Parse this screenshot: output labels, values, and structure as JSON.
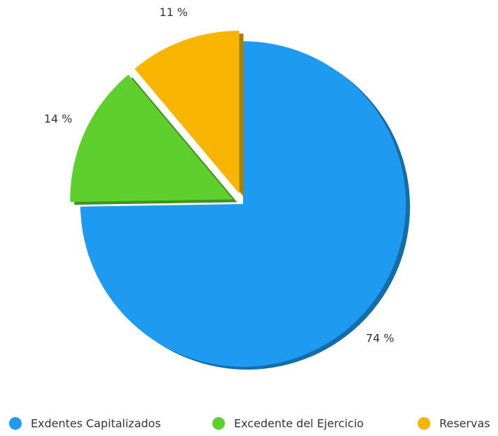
{
  "chart_data": {
    "type": "pie",
    "categories": [
      "Exdentes Capitalizados",
      "Excedente del Ejercicio",
      "Reservas"
    ],
    "values": [
      74,
      14,
      11
    ],
    "value_labels": [
      "74 %",
      "14 %",
      "11 %"
    ],
    "colors": [
      "#1e9bf0",
      "#5fcf2e",
      "#f7b500"
    ],
    "legend": "bottom"
  }
}
